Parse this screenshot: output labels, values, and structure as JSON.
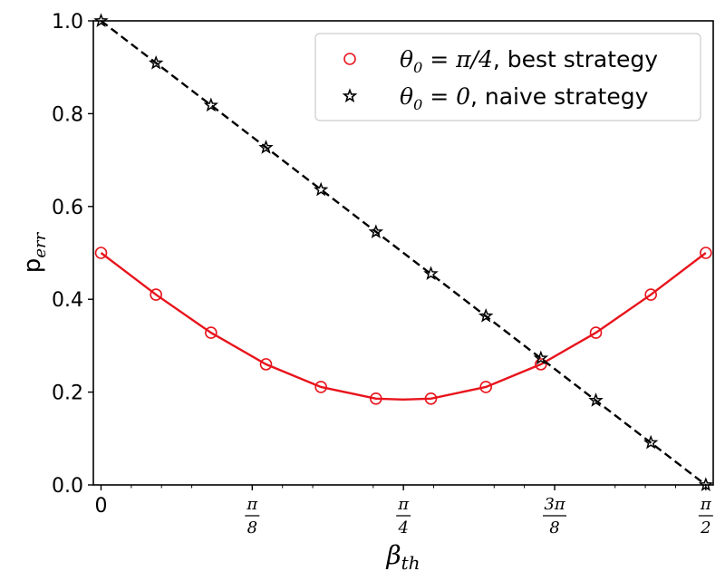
{
  "chart_data": {
    "type": "line",
    "xlabel": {
      "main": "β",
      "sub": "th"
    },
    "ylabel": {
      "main": "p",
      "sub": "err"
    },
    "xlim": [
      -0.02,
      1.59
    ],
    "ylim": [
      0.0,
      1.0
    ],
    "y_ticks": [
      0.0,
      0.2,
      0.4,
      0.6,
      0.8,
      1.0
    ],
    "y_tick_labels": [
      "0.0",
      "0.2",
      "0.4",
      "0.6",
      "0.8",
      "1.0"
    ],
    "x_ticks": [
      {
        "value": 0,
        "label": "0"
      },
      {
        "value": 0.3927,
        "num": "π",
        "den": "8"
      },
      {
        "value": 0.7854,
        "num": "π",
        "den": "4"
      },
      {
        "value": 1.1781,
        "num": "3π",
        "den": "8"
      },
      {
        "value": 1.5708,
        "num": "π",
        "den": "2"
      }
    ],
    "legend_position": "top-right",
    "grid": false,
    "series": [
      {
        "name": "θ₀ = π/4, best strategy",
        "legend": {
          "math": "θ",
          "sub": "0",
          "rest_math": " = π/4",
          "text": ", best strategy"
        },
        "color": "#e8141c",
        "line_style": "solid",
        "marker": "open-circle",
        "curve": [
          [
            0.0,
            0.5
          ],
          [
            0.1428,
            0.41
          ],
          [
            0.2856,
            0.328
          ],
          [
            0.4284,
            0.26
          ],
          [
            0.5712,
            0.211
          ],
          [
            0.714,
            0.186
          ],
          [
            0.785,
            0.184
          ],
          [
            0.8568,
            0.186
          ],
          [
            0.9996,
            0.211
          ],
          [
            1.1424,
            0.26
          ],
          [
            1.2852,
            0.328
          ],
          [
            1.428,
            0.41
          ],
          [
            1.5708,
            0.5
          ]
        ],
        "markers": [
          [
            0.0,
            0.5
          ],
          [
            0.1428,
            0.41
          ],
          [
            0.2856,
            0.328
          ],
          [
            0.4284,
            0.26
          ],
          [
            0.5712,
            0.211
          ],
          [
            0.714,
            0.186
          ],
          [
            0.8568,
            0.186
          ],
          [
            0.9996,
            0.211
          ],
          [
            1.1424,
            0.26
          ],
          [
            1.2852,
            0.328
          ],
          [
            1.428,
            0.41
          ],
          [
            1.5708,
            0.5
          ]
        ]
      },
      {
        "name": "θ₀ = 0, naive strategy",
        "legend": {
          "math": "θ",
          "sub": "0",
          "rest_math": " = 0",
          "text": ", naive strategy"
        },
        "color": "#000000",
        "line_style": "dashed",
        "marker": "open-star",
        "curve": [
          [
            0.0,
            1.0
          ],
          [
            1.5708,
            0.0
          ]
        ],
        "markers": [
          [
            0.0,
            1.0
          ],
          [
            0.1428,
            0.909
          ],
          [
            0.2856,
            0.818
          ],
          [
            0.4284,
            0.727
          ],
          [
            0.5712,
            0.636
          ],
          [
            0.714,
            0.545
          ],
          [
            0.8568,
            0.455
          ],
          [
            0.9996,
            0.364
          ],
          [
            1.1424,
            0.273
          ],
          [
            1.2852,
            0.182
          ],
          [
            1.428,
            0.091
          ],
          [
            1.5708,
            0.0
          ]
        ]
      }
    ]
  }
}
